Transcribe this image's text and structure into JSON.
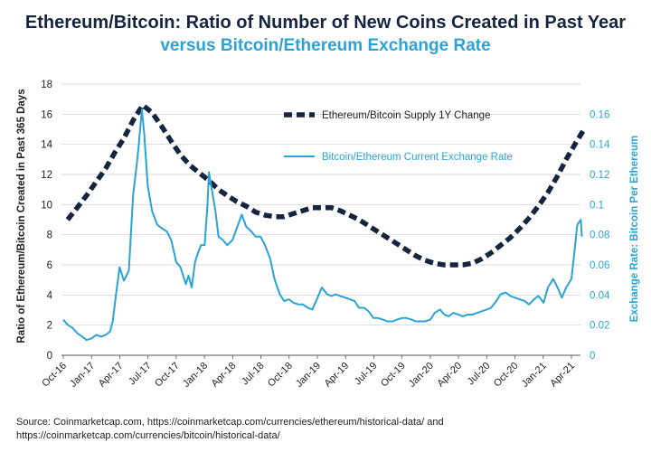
{
  "title": "Ethereum/Bitcoin: Ratio of Number of New Coins Created in Past Year",
  "subtitle": "versus Bitcoin/Ethereum Exchange Rate",
  "source_line1": "Source: Coinmarketcap.com, https://coinmarketcap.com/currencies/ethereum/historical-data/ and",
  "source_line2": "https://coinmarketcap.com/currencies/bitcoin/historical-data/",
  "colors": {
    "navy": "#15243f",
    "blue": "#2aa3d6",
    "grid": "#cccccc"
  },
  "chart_data": {
    "type": "line",
    "ylabel_left": "Ratio of Ethereum/Bitcoin Created in Past 365 Days",
    "ylabel_right": "Exchange Rate: Bitcoin Per Ethereum",
    "ylim_left": [
      0,
      18
    ],
    "ylim_right": [
      0,
      0.16
    ],
    "yticks_left": [
      "0",
      "2",
      "4",
      "6",
      "8",
      "10",
      "12",
      "14",
      "16",
      "18"
    ],
    "yticks_right": [
      "0",
      "0.02",
      "0.04",
      "0.06",
      "0.08",
      "0.1",
      "0.12",
      "0.14",
      "0.16"
    ],
    "x_tick_labels": [
      "Oct-16",
      "Jan-17",
      "Apr-17",
      "Jul-17",
      "Oct-17",
      "Jan-18",
      "Apr-18",
      "Jul-18",
      "Oct-18",
      "Jan-19",
      "Apr-19",
      "Jul-19",
      "Oct-19",
      "Jan-20",
      "Apr-20",
      "Jul-20",
      "Oct-20",
      "Jan-21",
      "Apr-21"
    ],
    "legend_position": "top-right",
    "series": [
      {
        "name": "Ethereum/Bitcoin Supply 1Y Change",
        "axis": "left",
        "style": "dashed",
        "x": [
          "2016-10",
          "2016-11",
          "2016-12",
          "2017-01",
          "2017-02",
          "2017-03",
          "2017-04",
          "2017-05",
          "2017-06",
          "2017-07",
          "2017-08",
          "2017-09",
          "2017-10",
          "2017-11",
          "2017-12",
          "2018-01",
          "2018-02",
          "2018-03",
          "2018-04",
          "2018-05",
          "2018-06",
          "2018-07",
          "2018-08",
          "2018-09",
          "2018-10",
          "2018-11",
          "2018-12",
          "2019-01",
          "2019-02",
          "2019-03",
          "2019-04",
          "2019-05",
          "2019-06",
          "2019-07",
          "2019-08",
          "2019-09",
          "2019-10",
          "2019-11",
          "2019-12",
          "2020-01",
          "2020-02",
          "2020-03",
          "2020-04",
          "2020-05",
          "2020-06",
          "2020-07",
          "2020-08",
          "2020-09",
          "2020-10",
          "2020-11",
          "2020-12",
          "2021-01",
          "2021-02",
          "2021-03",
          "2021-04",
          "2021-05"
        ],
        "values": [
          9.0,
          9.8,
          10.6,
          11.5,
          12.4,
          13.4,
          14.4,
          15.6,
          16.6,
          16.1,
          15.2,
          14.2,
          13.3,
          12.6,
          12.1,
          11.6,
          11.0,
          10.6,
          10.2,
          9.9,
          9.5,
          9.3,
          9.2,
          9.2,
          9.4,
          9.6,
          9.8,
          9.8,
          9.8,
          9.6,
          9.3,
          9.0,
          8.6,
          8.2,
          7.8,
          7.4,
          7.0,
          6.6,
          6.3,
          6.1,
          6.0,
          6.0,
          6.0,
          6.1,
          6.4,
          6.8,
          7.3,
          7.8,
          8.4,
          9.1,
          9.9,
          10.8,
          11.9,
          13.0,
          14.1,
          15.1
        ]
      },
      {
        "name": "Bitcoin/Ethereum Current Exchange Rate",
        "axis": "right",
        "style": "solid",
        "x": [
          "2016-10-01",
          "2016-10-15",
          "2016-11-01",
          "2016-11-15",
          "2016-12-01",
          "2016-12-15",
          "2017-01-01",
          "2017-01-15",
          "2017-02-01",
          "2017-02-15",
          "2017-03-01",
          "2017-03-10",
          "2017-03-20",
          "2017-04-01",
          "2017-04-15",
          "2017-05-01",
          "2017-05-15",
          "2017-05-25",
          "2017-06-01",
          "2017-06-12",
          "2017-06-20",
          "2017-07-01",
          "2017-07-15",
          "2017-08-01",
          "2017-08-15",
          "2017-09-01",
          "2017-09-15",
          "2017-10-01",
          "2017-10-15",
          "2017-11-01",
          "2017-11-10",
          "2017-11-20",
          "2017-12-01",
          "2017-12-10",
          "2017-12-20",
          "2018-01-01",
          "2018-01-10",
          "2018-01-15",
          "2018-01-25",
          "2018-02-05",
          "2018-02-15",
          "2018-03-01",
          "2018-03-15",
          "2018-04-01",
          "2018-04-15",
          "2018-05-01",
          "2018-05-15",
          "2018-06-01",
          "2018-06-15",
          "2018-07-01",
          "2018-07-15",
          "2018-08-01",
          "2018-08-15",
          "2018-09-01",
          "2018-09-15",
          "2018-10-01",
          "2018-10-15",
          "2018-11-01",
          "2018-11-15",
          "2018-12-01",
          "2018-12-15",
          "2019-01-01",
          "2019-01-15",
          "2019-02-01",
          "2019-02-15",
          "2019-03-01",
          "2019-03-15",
          "2019-04-01",
          "2019-04-15",
          "2019-05-01",
          "2019-05-15",
          "2019-06-01",
          "2019-06-15",
          "2019-07-01",
          "2019-07-15",
          "2019-08-01",
          "2019-08-15",
          "2019-09-01",
          "2019-09-15",
          "2019-10-01",
          "2019-10-15",
          "2019-11-01",
          "2019-11-15",
          "2019-12-01",
          "2019-12-15",
          "2020-01-01",
          "2020-01-15",
          "2020-02-01",
          "2020-02-15",
          "2020-03-01",
          "2020-03-15",
          "2020-04-01",
          "2020-04-15",
          "2020-05-01",
          "2020-05-15",
          "2020-06-01",
          "2020-06-15",
          "2020-07-01",
          "2020-07-15",
          "2020-08-01",
          "2020-08-15",
          "2020-09-01",
          "2020-09-15",
          "2020-10-01",
          "2020-10-15",
          "2020-11-01",
          "2020-11-15",
          "2020-12-01",
          "2020-12-15",
          "2021-01-01",
          "2021-01-15",
          "2021-02-01",
          "2021-02-15",
          "2021-03-01",
          "2021-03-15",
          "2021-04-01",
          "2021-04-10",
          "2021-04-20",
          "2021-05-01",
          "2021-05-05"
        ],
        "values": [
          0.021,
          0.018,
          0.016,
          0.013,
          0.011,
          0.009,
          0.01,
          0.012,
          0.011,
          0.012,
          0.014,
          0.02,
          0.035,
          0.052,
          0.044,
          0.05,
          0.095,
          0.11,
          0.122,
          0.145,
          0.13,
          0.1,
          0.085,
          0.077,
          0.075,
          0.073,
          0.068,
          0.055,
          0.052,
          0.042,
          0.047,
          0.04,
          0.055,
          0.06,
          0.065,
          0.065,
          0.088,
          0.108,
          0.097,
          0.085,
          0.07,
          0.068,
          0.065,
          0.068,
          0.075,
          0.083,
          0.076,
          0.073,
          0.07,
          0.07,
          0.065,
          0.057,
          0.045,
          0.036,
          0.032,
          0.033,
          0.031,
          0.03,
          0.03,
          0.028,
          0.027,
          0.034,
          0.04,
          0.036,
          0.035,
          0.036,
          0.035,
          0.034,
          0.033,
          0.032,
          0.028,
          0.028,
          0.026,
          0.022,
          0.022,
          0.021,
          0.02,
          0.02,
          0.021,
          0.022,
          0.022,
          0.021,
          0.02,
          0.02,
          0.02,
          0.021,
          0.025,
          0.027,
          0.024,
          0.023,
          0.025,
          0.024,
          0.023,
          0.024,
          0.024,
          0.025,
          0.026,
          0.027,
          0.028,
          0.032,
          0.036,
          0.037,
          0.035,
          0.034,
          0.033,
          0.032,
          0.03,
          0.033,
          0.035,
          0.031,
          0.04,
          0.045,
          0.04,
          0.034,
          0.04,
          0.045,
          0.06,
          0.077,
          0.08,
          0.07
        ]
      }
    ]
  }
}
